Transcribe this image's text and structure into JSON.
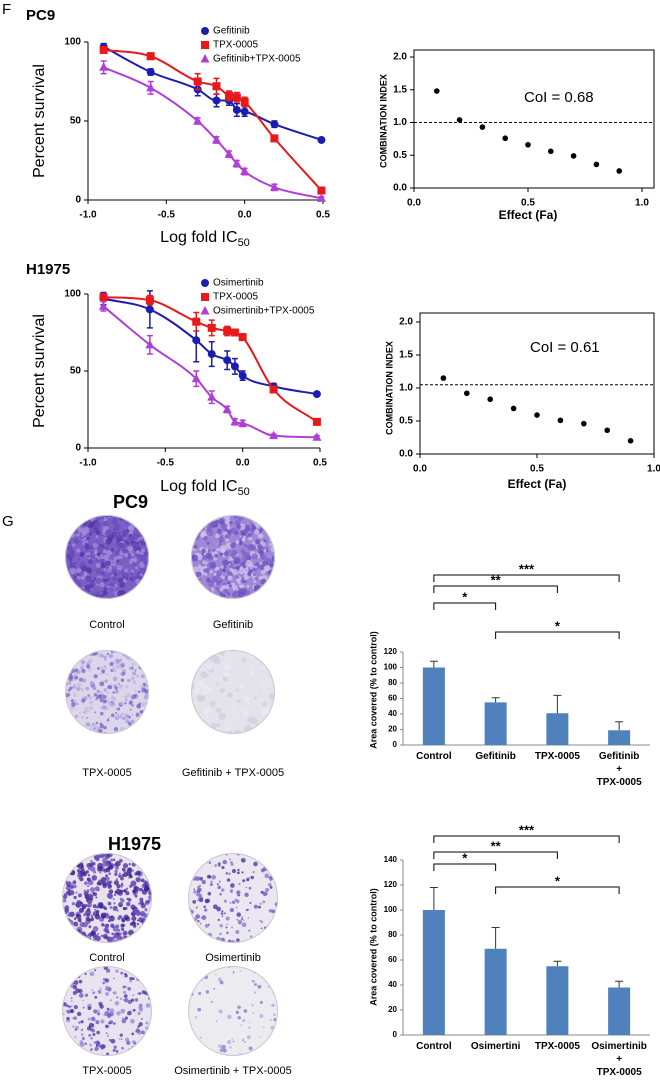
{
  "panel_labels": [
    "F",
    "G"
  ],
  "chart_data": [
    {
      "type": "line",
      "title": "PC9",
      "x_label": "Log fold IC",
      "x_label_sub": "50",
      "y_label": "Percent survival",
      "xlim": [
        -1,
        0.5
      ],
      "xticks": [
        {
          "value": -1,
          "label": "-1.0"
        },
        -0.5,
        {
          "value": 0,
          "label": "0.0"
        },
        0.5
      ],
      "ylim": [
        0,
        100
      ],
      "yticks": [
        0,
        50,
        100
      ],
      "legend": "top",
      "x": [
        -0.9,
        -0.6,
        -0.3,
        -0.18,
        -0.1,
        -0.05,
        0,
        0.19,
        0.49
      ],
      "series": [
        {
          "name": "Gefitinib",
          "color": "#1c1cb0",
          "marker": "circle",
          "values": [
            97,
            81,
            70,
            63,
            63,
            57,
            56,
            48,
            38
          ],
          "errors": [
            2,
            2,
            4,
            4,
            3,
            4,
            3,
            2,
            1
          ]
        },
        {
          "name": "TPX-0005",
          "color": "#e8191a",
          "marker": "square",
          "values": [
            95,
            91,
            75,
            72,
            66,
            65,
            62,
            39,
            6
          ],
          "errors": [
            2,
            2,
            5,
            5,
            3,
            3,
            3,
            2,
            2
          ]
        },
        {
          "name": "Gefitinib+TPX-0005",
          "color": "#b03fd6",
          "marker": "triangle",
          "values": [
            84,
            71,
            50,
            38,
            29,
            23,
            18,
            8,
            1
          ],
          "errors": [
            4,
            4,
            2,
            2,
            2,
            2,
            2,
            2,
            1
          ]
        }
      ]
    },
    {
      "type": "scatter",
      "y_label": "COMBINATION INDEX",
      "x_label": "Effect (Fa)",
      "xlim": [
        0,
        1
      ],
      "xticks": [
        {
          "value": 0,
          "label": "0.0"
        },
        0.5,
        {
          "value": 1,
          "label": "1.0"
        }
      ],
      "ylim": [
        0,
        2
      ],
      "yticks": [
        {
          "value": 0,
          "label": "0.0"
        },
        0.5,
        {
          "value": 1,
          "label": "1.0"
        },
        1.5,
        {
          "value": 2,
          "label": "2.0"
        }
      ],
      "x": [
        0.1,
        0.2,
        0.3,
        0.4,
        0.5,
        0.6,
        0.7,
        0.8,
        0.9
      ],
      "values": [
        1.48,
        1.04,
        0.93,
        0.76,
        0.66,
        0.56,
        0.49,
        0.36,
        0.26
      ],
      "color": "#000000",
      "reference_line": 1,
      "annotation": "CoI = 0.68"
    },
    {
      "type": "line",
      "title": "H1975",
      "x_label": "Log fold IC",
      "x_label_sub": "50",
      "y_label": "Percent survival",
      "xlim": [
        -1,
        0.5
      ],
      "xticks": [
        {
          "value": -1,
          "label": "-1.0"
        },
        -0.5,
        {
          "value": 0,
          "label": "0.0"
        },
        0.5
      ],
      "ylim": [
        0,
        100
      ],
      "yticks": [
        0,
        50,
        100
      ],
      "legend": "top",
      "x": [
        -0.9,
        -0.6,
        -0.3,
        -0.2,
        -0.1,
        -0.05,
        0,
        0.2,
        0.48
      ],
      "series": [
        {
          "name": "Osimertinib",
          "color": "#1c1cb0",
          "marker": "circle",
          "values": [
            97,
            90,
            70,
            61,
            57,
            53,
            47,
            40,
            35
          ],
          "errors": [
            4,
            12,
            14,
            8,
            6,
            5,
            3,
            2,
            1
          ]
        },
        {
          "name": "TPX-0005",
          "color": "#e8191a",
          "marker": "square",
          "values": [
            98,
            96,
            82,
            78,
            76,
            75,
            72,
            38,
            17
          ],
          "errors": [
            2,
            3,
            6,
            5,
            3,
            2,
            2,
            2,
            2
          ]
        },
        {
          "name": "Osimertinib+TPX-0005",
          "color": "#b03fd6",
          "marker": "triangle",
          "values": [
            92,
            67,
            45,
            33,
            25,
            17,
            16,
            8,
            7
          ],
          "errors": [
            3,
            6,
            5,
            4,
            2,
            2,
            2,
            1,
            1
          ]
        }
      ]
    },
    {
      "type": "scatter",
      "y_label": "COMBINATION INDEX",
      "x_label": "Effect (Fa)",
      "xlim": [
        0,
        1
      ],
      "xticks": [
        {
          "value": 0,
          "label": "0.0"
        },
        0.5,
        {
          "value": 1,
          "label": "1.0"
        }
      ],
      "ylim": [
        0,
        2
      ],
      "yticks": [
        {
          "value": 0,
          "label": "0.0"
        },
        0.5,
        {
          "value": 1,
          "label": "1.0"
        },
        1.5,
        {
          "value": 2,
          "label": "2.0"
        }
      ],
      "x": [
        0.1,
        0.2,
        0.3,
        0.4,
        0.5,
        0.6,
        0.7,
        0.8,
        0.9
      ],
      "values": [
        1.15,
        0.92,
        0.83,
        0.69,
        0.59,
        0.51,
        0.46,
        0.36,
        0.2
      ],
      "color": "#000000",
      "reference_line": 1.05,
      "annotation": "CoI = 0.61"
    },
    {
      "type": "bar",
      "y_label": "Area covered (% to control)",
      "categories": [
        "Control",
        "Gefitinib",
        "TPX-0005",
        "Gefitinib + TPX-0005"
      ],
      "values": [
        100,
        55,
        41,
        19
      ],
      "errors": [
        8,
        6,
        23,
        11
      ],
      "color": "#4f81bd",
      "ylim": [
        0,
        120
      ],
      "yticks": [
        0,
        20,
        40,
        60,
        80,
        100,
        120
      ],
      "significance_labels": [
        "*",
        "**",
        "***",
        "*"
      ]
    },
    {
      "type": "bar",
      "y_label": "Area covered (% to control)",
      "categories": [
        "Control",
        "Osimertini",
        "TPX-0005",
        "Osimertinib + TPX-0005"
      ],
      "values": [
        100,
        69,
        55,
        38
      ],
      "errors": [
        18,
        17,
        4,
        5
      ],
      "color": "#4f81bd",
      "ylim": [
        0,
        140
      ],
      "yticks": [
        0,
        20,
        40,
        60,
        80,
        100,
        120,
        140
      ],
      "significance_labels": [
        "*",
        "**",
        "***",
        "*"
      ]
    }
  ],
  "wells": [
    {
      "title": "PC9",
      "labels": [
        "Control",
        "Gefitinib",
        "TPX-0005",
        "Gefitinib + TPX-0005"
      ]
    },
    {
      "title": "H1975",
      "labels": [
        "Control",
        "Osimertinib",
        "TPX-0005",
        "Osimertinib + TPX-0005"
      ]
    }
  ]
}
